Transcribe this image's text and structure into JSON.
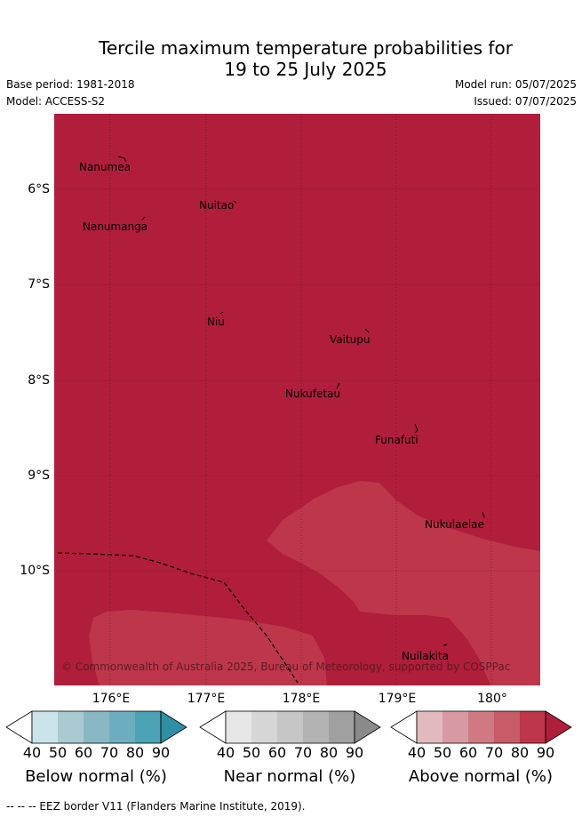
{
  "title_line1": "Tercile maximum temperature probabilities for",
  "title_line2": "19 to 25 July 2025",
  "meta": {
    "base_period": "Base period: 1981-2018",
    "model": "Model: ACCESS-S2",
    "model_run": "Model run: 05/07/2025",
    "issued": "Issued: 07/07/2025"
  },
  "map": {
    "lat_labels": [
      "6°S",
      "7°S",
      "8°S",
      "9°S",
      "10°S"
    ],
    "lon_labels": [
      "176°E",
      "177°E",
      "178°E",
      "179°E",
      "180°"
    ],
    "islands": [
      {
        "name": "Nanumea"
      },
      {
        "name": "Nuitao"
      },
      {
        "name": "Nanumanga"
      },
      {
        "name": "Niu"
      },
      {
        "name": "Vaitupu"
      },
      {
        "name": "Nukufetau"
      },
      {
        "name": "Funafuti"
      },
      {
        "name": "Nukulaelae"
      },
      {
        "name": "Nuilakita"
      }
    ],
    "copyright": "© Commonwealth of Australia 2025, Bureau of Meteorology, supported by COSPPac",
    "colors": {
      "above_90": "#b01e3c",
      "above_80": "#bd3649",
      "above_70": "#c4505c"
    }
  },
  "colorbars": [
    {
      "label": "Below normal (%)",
      "ticks": [
        "40",
        "50",
        "60",
        "70",
        "80",
        "90"
      ],
      "colors": [
        "#ffffff",
        "#cbe3ea",
        "#a9cad0",
        "#8ab7c4",
        "#6caebf",
        "#4ba3b5",
        "#2e8fa5"
      ]
    },
    {
      "label": "Near normal (%)",
      "ticks": [
        "40",
        "50",
        "60",
        "70",
        "80",
        "90"
      ],
      "colors": [
        "#ffffff",
        "#e6e6e6",
        "#d6d6d6",
        "#c6c6c6",
        "#b3b3b3",
        "#a0a0a0",
        "#8a8a8a"
      ]
    },
    {
      "label": "Above normal (%)",
      "ticks": [
        "40",
        "50",
        "60",
        "70",
        "80",
        "90"
      ],
      "colors": [
        "#ffffff",
        "#e2b9bf",
        "#d89aa2",
        "#cf7a82",
        "#c55c68",
        "#bd3649",
        "#b01e3c"
      ]
    }
  ],
  "footnote": "--  --  -- EEZ border V11 (Flanders Marine Institute, 2019)."
}
